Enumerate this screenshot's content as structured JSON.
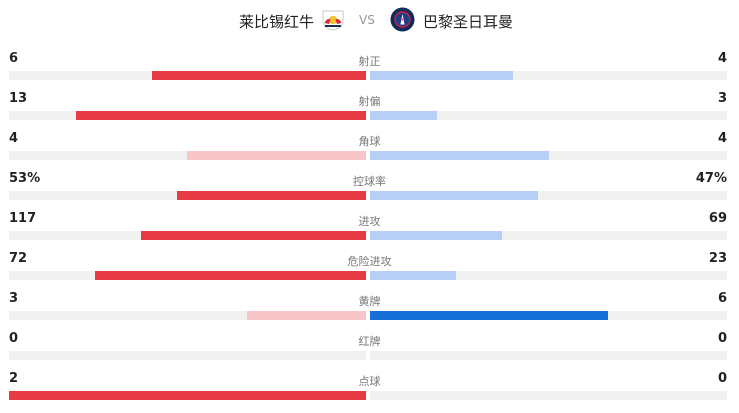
{
  "header": {
    "home_team": "莱比锡红牛",
    "vs": "VS",
    "away_team": "巴黎圣日耳曼",
    "home_logo_icon": "rb-leipzig-logo-icon",
    "away_logo_icon": "psg-logo-icon"
  },
  "colors": {
    "home_strong": "#e63a44",
    "home_weak": "#f8c6c8",
    "away_strong": "#1670d8",
    "away_weak": "#b8cff5",
    "track": "#f1f1f1"
  },
  "stats": [
    {
      "label": "射正",
      "home": "6",
      "away": "4",
      "home_ratio": 0.6,
      "away_ratio": 0.4,
      "leader": "home"
    },
    {
      "label": "射偏",
      "home": "13",
      "away": "3",
      "home_ratio": 0.813,
      "away_ratio": 0.188,
      "leader": "home"
    },
    {
      "label": "角球",
      "home": "4",
      "away": "4",
      "home_ratio": 0.5,
      "away_ratio": 0.5,
      "leader": "tie"
    },
    {
      "label": "控球率",
      "home": "53%",
      "away": "47%",
      "home_ratio": 0.53,
      "away_ratio": 0.47,
      "leader": "home"
    },
    {
      "label": "进攻",
      "home": "117",
      "away": "69",
      "home_ratio": 0.629,
      "away_ratio": 0.371,
      "leader": "home"
    },
    {
      "label": "危险进攻",
      "home": "72",
      "away": "23",
      "home_ratio": 0.758,
      "away_ratio": 0.242,
      "leader": "home"
    },
    {
      "label": "黄牌",
      "home": "3",
      "away": "6",
      "home_ratio": 0.333,
      "away_ratio": 0.667,
      "leader": "away"
    },
    {
      "label": "红牌",
      "home": "0",
      "away": "0",
      "home_ratio": 0,
      "away_ratio": 0,
      "leader": "none"
    },
    {
      "label": "点球",
      "home": "2",
      "away": "0",
      "home_ratio": 1,
      "away_ratio": 0,
      "leader": "home"
    }
  ]
}
